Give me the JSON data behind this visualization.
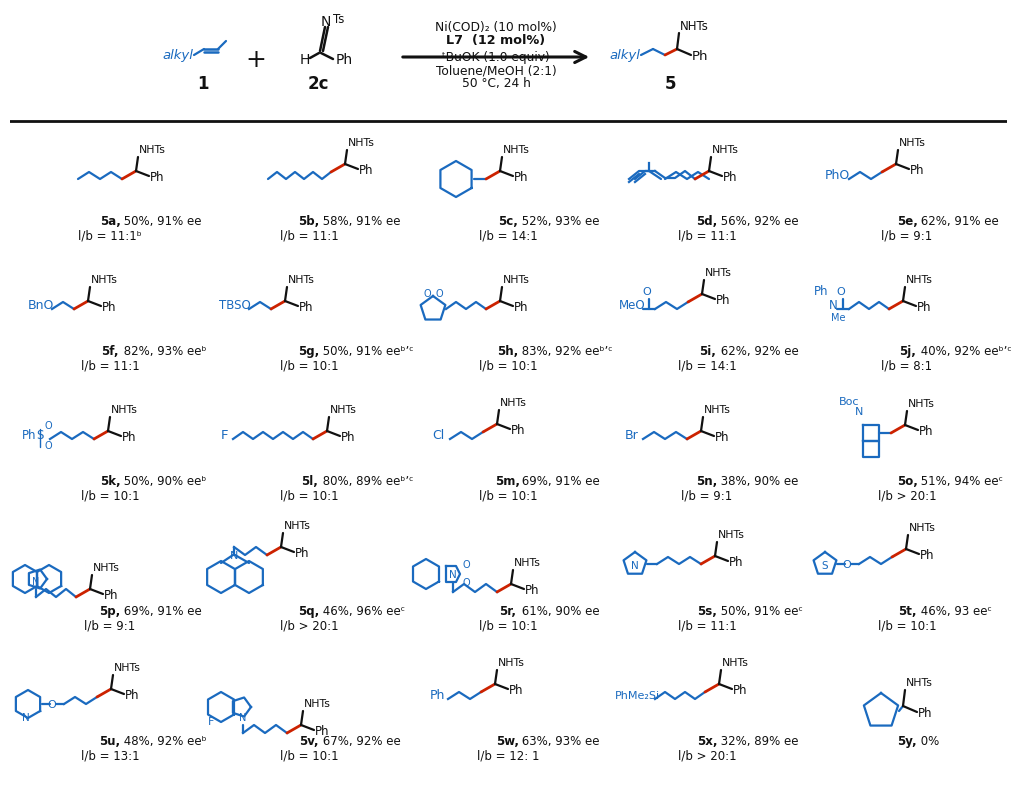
{
  "background": "#ffffff",
  "blue": "#1a6abf",
  "red": "#cc2200",
  "black": "#111111",
  "figsize": [
    9.97,
    7.72
  ],
  "dpi": 100,
  "compounds": [
    {
      "id": "5a",
      "stats": "50%, 91% ee",
      "lr": "l/b = 11:1ᵇ"
    },
    {
      "id": "5b",
      "stats": "58%, 91% ee",
      "lr": "l/b = 11:1"
    },
    {
      "id": "5c",
      "stats": "52%, 93% ee",
      "lr": "l/b = 14:1"
    },
    {
      "id": "5d",
      "stats": "56%, 92% ee",
      "lr": "l/b = 11:1"
    },
    {
      "id": "5e",
      "stats": "62%, 91% ee",
      "lr": "l/b = 9:1"
    },
    {
      "id": "5f",
      "stats": "82%, 93% eeᵇ",
      "lr": "l/b = 11:1"
    },
    {
      "id": "5g",
      "stats": "50%, 91% eeᵇʼᶜ",
      "lr": "l/b = 10:1"
    },
    {
      "id": "5h",
      "stats": "83%, 92% eeᵇʼᶜ",
      "lr": "l/b = 10:1"
    },
    {
      "id": "5i",
      "stats": "62%, 92% ee",
      "lr": "l/b = 14:1"
    },
    {
      "id": "5j",
      "stats": "40%, 92% eeᵇʼᶜ",
      "lr": "l/b = 8:1"
    },
    {
      "id": "5k",
      "stats": "50%, 90% eeᵇ",
      "lr": "l/b = 10:1"
    },
    {
      "id": "5l",
      "stats": "80%, 89% eeᵇʼᶜ",
      "lr": "l/b = 10:1"
    },
    {
      "id": "5m",
      "stats": "69%, 91% ee",
      "lr": "l/b = 10:1"
    },
    {
      "id": "5n",
      "stats": "38%, 90% ee",
      "lr": "l/b = 9:1"
    },
    {
      "id": "5o",
      "stats": "51%, 94% eeᶜ",
      "lr": "l/b > 20:1"
    },
    {
      "id": "5p",
      "stats": "69%, 91% ee",
      "lr": "l/b = 9:1"
    },
    {
      "id": "5q",
      "stats": "46%, 96% eeᶜ",
      "lr": "l/b > 20:1"
    },
    {
      "id": "5r",
      "stats": "61%, 90% ee",
      "lr": "l/b = 10:1"
    },
    {
      "id": "5s",
      "stats": "50%, 91% eeᶜ",
      "lr": "l/b = 11:1"
    },
    {
      "id": "5t",
      "stats": "46%, 93 eeᶜ",
      "lr": "l/b = 10:1"
    },
    {
      "id": "5u",
      "stats": "48%, 92% eeᵇ",
      "lr": "l/b = 13:1"
    },
    {
      "id": "5v",
      "stats": "67%, 92% ee",
      "lr": "l/b = 10:1"
    },
    {
      "id": "5w",
      "stats": "63%, 93% ee",
      "lr": "l/b = 12: 1"
    },
    {
      "id": "5x",
      "stats": "32%, 89% ee",
      "lr": "l/b > 20:1"
    },
    {
      "id": "5y",
      "stats": "0%",
      "lr": ""
    }
  ]
}
